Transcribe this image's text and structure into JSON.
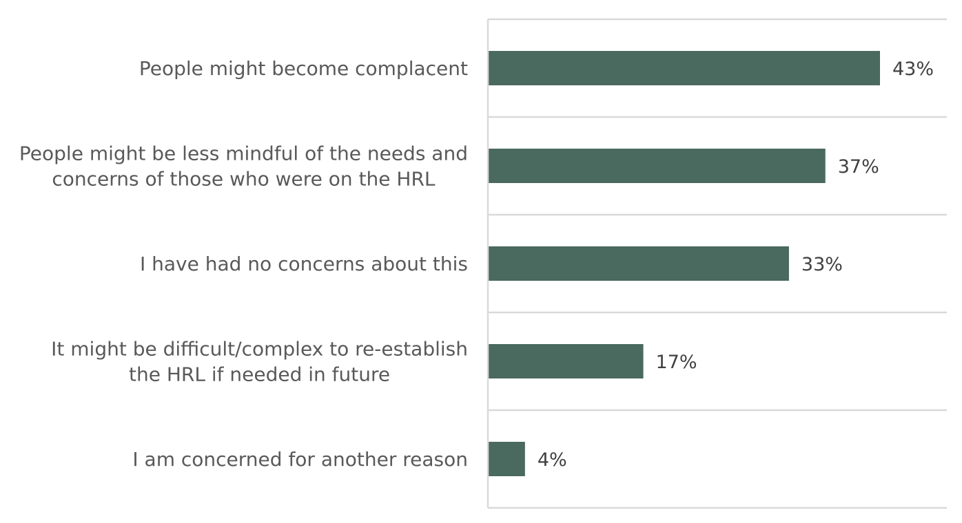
{
  "chart_data": {
    "type": "bar",
    "orientation": "horizontal",
    "categories": [
      "People might become complacent",
      "People might be less mindful of the needs and concerns of those who were on the HRL",
      "I have had no concerns about this",
      "It might be difficult/complex to re-establish the HRL if needed in future",
      "I am concerned for another reason"
    ],
    "category_lines": [
      [
        "People might become complacent"
      ],
      [
        "People might be less mindful of the needs and",
        "concerns of those who were on the HRL"
      ],
      [
        "I have had no concerns about this"
      ],
      [
        "It might be difficult/complex to re-establish",
        "the HRL if needed in future"
      ],
      [
        "I am concerned for another reason"
      ]
    ],
    "values": [
      43,
      37,
      33,
      17,
      4
    ],
    "value_labels": [
      "43%",
      "37%",
      "33%",
      "17%",
      "4%"
    ],
    "xlim": [
      0,
      50
    ],
    "title": "",
    "xlabel": "",
    "ylabel": "",
    "grid": "horizontal separators between categories",
    "legend": "none",
    "colors": {
      "bar": "#4a695f",
      "gridline": "#d9d9d9",
      "axis": "#d9d9d9",
      "category_text": "#595959",
      "value_text": "#404040"
    }
  }
}
